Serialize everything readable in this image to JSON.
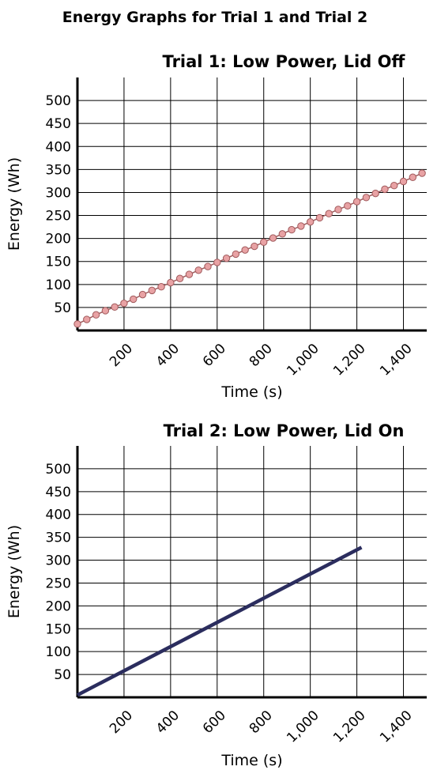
{
  "page_title": "Energy Graphs for Trial 1 and Trial 2",
  "chart_data": [
    {
      "type": "scatter",
      "title": "Trial 1: Low Power, Lid Off",
      "xlabel": "Time (s)",
      "ylabel": "Energy (Wh)",
      "xlim": [
        0,
        1500
      ],
      "ylim": [
        0,
        550
      ],
      "xticks": [
        200,
        400,
        600,
        800,
        1000,
        1200,
        1400
      ],
      "xtick_labels": [
        "200",
        "400",
        "600",
        "800",
        "1,000",
        "1,200",
        "1,400"
      ],
      "yticks": [
        50,
        100,
        150,
        200,
        250,
        300,
        350,
        400,
        450,
        500
      ],
      "ytick_labels": [
        "50",
        "100",
        "150",
        "200",
        "250",
        "300",
        "350",
        "400",
        "450",
        "500"
      ],
      "grid": true,
      "marker_color": "#e8a2a4",
      "marker_edge_color": "#a05a5c",
      "series": [
        {
          "x": [
            0,
            40,
            80,
            120,
            160,
            200,
            240,
            280,
            320,
            360,
            400,
            440,
            480,
            520,
            560,
            600,
            640,
            680,
            720,
            760,
            800,
            840,
            880,
            920,
            960,
            1000,
            1040,
            1080,
            1120,
            1160,
            1200,
            1240,
            1280,
            1320,
            1360,
            1400,
            1440,
            1480
          ],
          "y": [
            14,
            24,
            34,
            43,
            51,
            59,
            68,
            78,
            87,
            95,
            104,
            113,
            122,
            131,
            139,
            148,
            157,
            166,
            175,
            183,
            192,
            201,
            210,
            219,
            227,
            236,
            245,
            254,
            263,
            271,
            280,
            289,
            298,
            307,
            315,
            324,
            333,
            342
          ]
        }
      ]
    },
    {
      "type": "line",
      "title": "Trial 2: Low Power, Lid On",
      "xlabel": "Time (s)",
      "ylabel": "Energy (Wh)",
      "xlim": [
        0,
        1500
      ],
      "ylim": [
        0,
        550
      ],
      "xticks": [
        200,
        400,
        600,
        800,
        1000,
        1200,
        1400
      ],
      "xtick_labels": [
        "200",
        "400",
        "600",
        "800",
        "1,000",
        "1,200",
        "1,400"
      ],
      "yticks": [
        50,
        100,
        150,
        200,
        250,
        300,
        350,
        400,
        450,
        500
      ],
      "ytick_labels": [
        "50",
        "100",
        "150",
        "200",
        "250",
        "300",
        "350",
        "400",
        "450",
        "500"
      ],
      "grid": true,
      "line_color": "#2b2d5e",
      "series": [
        {
          "x": [
            0,
            1220
          ],
          "y": [
            5,
            328
          ]
        }
      ]
    }
  ]
}
